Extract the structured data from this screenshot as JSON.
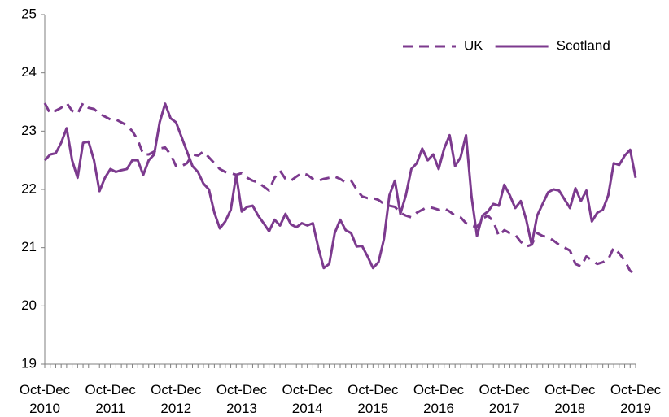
{
  "chart_data": {
    "type": "line",
    "categories": [
      "Oct-Dec 2010",
      null,
      null,
      null,
      null,
      null,
      null,
      null,
      null,
      null,
      null,
      null,
      "Oct-Dec 2011",
      null,
      null,
      null,
      null,
      null,
      null,
      null,
      null,
      null,
      null,
      null,
      "Oct-Dec 2012",
      null,
      null,
      null,
      null,
      null,
      null,
      null,
      null,
      null,
      null,
      null,
      "Oct-Dec 2013",
      null,
      null,
      null,
      null,
      null,
      null,
      null,
      null,
      null,
      null,
      null,
      "Oct-Dec 2014",
      null,
      null,
      null,
      null,
      null,
      null,
      null,
      null,
      null,
      null,
      null,
      "Oct-Dec 2015",
      null,
      null,
      null,
      null,
      null,
      null,
      null,
      null,
      null,
      null,
      null,
      "Oct-Dec 2016",
      null,
      null,
      null,
      null,
      null,
      null,
      null,
      null,
      null,
      null,
      null,
      "Oct-Dec 2017",
      null,
      null,
      null,
      null,
      null,
      null,
      null,
      null,
      null,
      null,
      null,
      "Oct-Dec 2018",
      null,
      null,
      null,
      null,
      null,
      null,
      null,
      null,
      null,
      null,
      null,
      "Oct-Dec 2019"
    ],
    "series": [
      {
        "name": "UK",
        "color": "#7c3a8e",
        "dash": "dashed",
        "values": [
          23.48,
          23.3,
          23.35,
          23.4,
          23.48,
          23.35,
          23.3,
          23.48,
          23.4,
          23.38,
          23.3,
          23.25,
          23.2,
          23.2,
          23.15,
          23.1,
          23.0,
          22.85,
          22.6,
          22.6,
          22.65,
          22.7,
          22.72,
          22.6,
          22.4,
          22.4,
          22.45,
          22.6,
          22.58,
          22.65,
          22.55,
          22.45,
          22.35,
          22.3,
          22.28,
          22.25,
          22.28,
          22.2,
          22.15,
          22.12,
          22.05,
          21.98,
          22.2,
          22.32,
          22.18,
          22.15,
          22.22,
          22.28,
          22.25,
          22.18,
          22.15,
          22.18,
          22.2,
          22.22,
          22.18,
          22.12,
          22.15,
          22.0,
          21.88,
          21.85,
          21.85,
          21.82,
          21.75,
          21.72,
          21.7,
          21.6,
          21.55,
          21.52,
          21.6,
          21.65,
          21.7,
          21.68,
          21.65,
          21.68,
          21.62,
          21.55,
          21.52,
          21.42,
          21.38,
          21.35,
          21.5,
          21.55,
          21.45,
          21.2,
          21.3,
          21.25,
          21.22,
          21.1,
          21.02,
          21.05,
          21.25,
          21.2,
          21.18,
          21.12,
          21.05,
          21.0,
          20.95,
          20.72,
          20.68,
          20.85,
          20.78,
          20.72,
          20.75,
          20.8,
          21.0,
          20.9,
          20.78,
          20.6,
          20.55
        ]
      },
      {
        "name": "Scotland",
        "color": "#7c3a8e",
        "dash": "solid",
        "values": [
          22.5,
          22.6,
          22.62,
          22.8,
          23.05,
          22.5,
          22.2,
          22.8,
          22.82,
          22.5,
          21.97,
          22.2,
          22.35,
          22.3,
          22.33,
          22.35,
          22.5,
          22.5,
          22.25,
          22.5,
          22.6,
          23.15,
          23.47,
          23.22,
          23.15,
          22.9,
          22.65,
          22.4,
          22.3,
          22.1,
          22.0,
          21.6,
          21.33,
          21.45,
          21.65,
          22.25,
          21.62,
          21.7,
          21.72,
          21.55,
          21.42,
          21.28,
          21.48,
          21.38,
          21.58,
          21.4,
          21.35,
          21.42,
          21.38,
          21.42,
          21.0,
          20.65,
          20.72,
          21.25,
          21.48,
          21.3,
          21.25,
          21.02,
          21.03,
          20.85,
          20.65,
          20.75,
          21.15,
          21.9,
          22.15,
          21.58,
          21.9,
          22.35,
          22.45,
          22.7,
          22.5,
          22.6,
          22.35,
          22.7,
          22.93,
          22.4,
          22.55,
          22.93,
          21.88,
          21.2,
          21.55,
          21.62,
          21.75,
          21.72,
          22.08,
          21.9,
          21.68,
          21.8,
          21.48,
          21.05,
          21.55,
          21.75,
          21.95,
          22.0,
          21.98,
          21.83,
          21.68,
          22.02,
          21.8,
          21.98,
          21.45,
          21.6,
          21.65,
          21.9,
          22.45,
          22.42,
          22.58,
          22.68,
          22.2
        ]
      }
    ],
    "ylim": [
      19,
      25
    ],
    "yticks": [
      19,
      20,
      21,
      22,
      23,
      24,
      25
    ],
    "grid": false,
    "legend": "upper right"
  }
}
